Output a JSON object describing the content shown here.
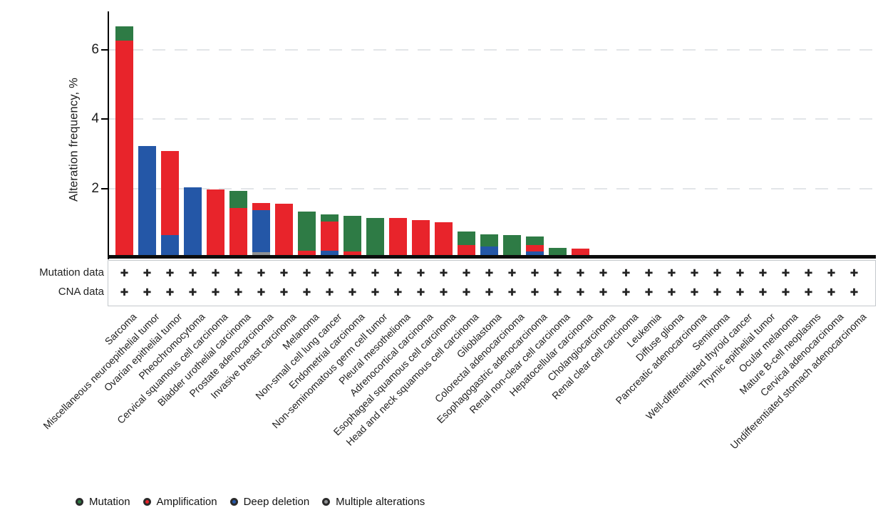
{
  "y_axis": {
    "title": "Alteration frequency, %",
    "ticks": [
      6,
      4,
      2
    ]
  },
  "tracks": {
    "rows": [
      {
        "label": "Mutation data"
      },
      {
        "label": "CNA data"
      }
    ],
    "symbol": "✚"
  },
  "legend": [
    {
      "label": "Mutation",
      "color_key": "mutation"
    },
    {
      "label": "Amplification",
      "color_key": "amplification"
    },
    {
      "label": "Deep deletion",
      "color_key": "deep_deletion"
    },
    {
      "label": "Multiple alterations",
      "color_key": "multiple_alterations"
    }
  ],
  "colors": {
    "mutation": "#2e7b45",
    "amplification": "#e8242b",
    "deep_deletion": "#2457a7",
    "multiple_alterations": "#8f9193",
    "axis": "#000000",
    "gridline": "#e2e5e8",
    "text": "#1d1d1d"
  },
  "chart_data": {
    "type": "bar",
    "stacked": true,
    "title": "",
    "xlabel": "",
    "ylabel": "Alteration frequency, %",
    "ylim": [
      0,
      7.1
    ],
    "yticks": [
      2,
      4,
      6
    ],
    "grid": "dashed-horizontal",
    "legend_position": "bottom",
    "categories": [
      "Sarcoma",
      "Miscellaneous neuroepithelial tumor",
      "Ovarian epithelial tumor",
      "Pheochromocytoma",
      "Cervical squamous cell carcinoma",
      "Bladder urothelial carcinoma",
      "Prostate adenocarcinoma",
      "Invasive breast carcinoma",
      "Melanoma",
      "Non-small cell lung cancer",
      "Endometrial carcinoma",
      "Non-seminomatous germ cell tumor",
      "Pleural mesothelioma",
      "Adrenocortical carcinoma",
      "Esophageal squamous cell carcinoma",
      "Head and neck squamous cell carcinoma",
      "Glioblastoma",
      "Colorectal adenocarcinoma",
      "Esophagogastric adenocarcinoma",
      "Renal non-clear cell carcinoma",
      "Hepatocellular carcinoma",
      "Cholangiocarcinoma",
      "Renal clear cell carcinoma",
      "Leukemia",
      "Diffuse glioma",
      "Pancreatic adenocarcinoma",
      "Seminoma",
      "Well-differentiated thyroid cancer",
      "Thymic epithelial tumor",
      "Ocular melanoma",
      "Mature B-cell neoplasms",
      "Cervical adenocarcinoma",
      "Undifferentiated stomach adenocarcinoma"
    ],
    "series": [
      {
        "name": "Multiple alterations",
        "color_key": "multiple_alterations",
        "values": [
          0,
          0,
          0,
          0,
          0,
          0,
          0.17,
          0,
          0,
          0,
          0,
          0,
          0,
          0,
          0,
          0,
          0,
          0,
          0,
          0,
          0,
          0,
          0,
          0,
          0,
          0,
          0,
          0,
          0,
          0,
          0,
          0,
          0
        ]
      },
      {
        "name": "Deep deletion",
        "color_key": "deep_deletion",
        "values": [
          0,
          3.22,
          0.66,
          2.04,
          0,
          0,
          1.2,
          0.06,
          0,
          0.2,
          0,
          0,
          0,
          0,
          0,
          0,
          0.33,
          0,
          0.18,
          0,
          0,
          0,
          0,
          0,
          0,
          0,
          0,
          0,
          0,
          0,
          0,
          0,
          0
        ]
      },
      {
        "name": "Amplification",
        "color_key": "amplification",
        "values": [
          6.27,
          0,
          2.43,
          0,
          1.98,
          1.44,
          0.21,
          1.51,
          0.21,
          0.84,
          0.18,
          0,
          1.14,
          1.09,
          1.03,
          0.37,
          0,
          0,
          0.19,
          0,
          0.27,
          0,
          0,
          0,
          0,
          0,
          0,
          0,
          0,
          0,
          0,
          0,
          0
        ]
      },
      {
        "name": "Mutation",
        "color_key": "mutation",
        "values": [
          0.41,
          0,
          0,
          0,
          0,
          0.5,
          0,
          0,
          1.13,
          0.21,
          1.03,
          1.15,
          0,
          0,
          0,
          0.39,
          0.34,
          0.65,
          0.25,
          0.28,
          0,
          0,
          0,
          0,
          0,
          0,
          0,
          0,
          0,
          0,
          0,
          0,
          0
        ]
      }
    ],
    "tracks_per_category": {
      "mutation_data": "all-present",
      "cna_data": "all-present"
    }
  }
}
